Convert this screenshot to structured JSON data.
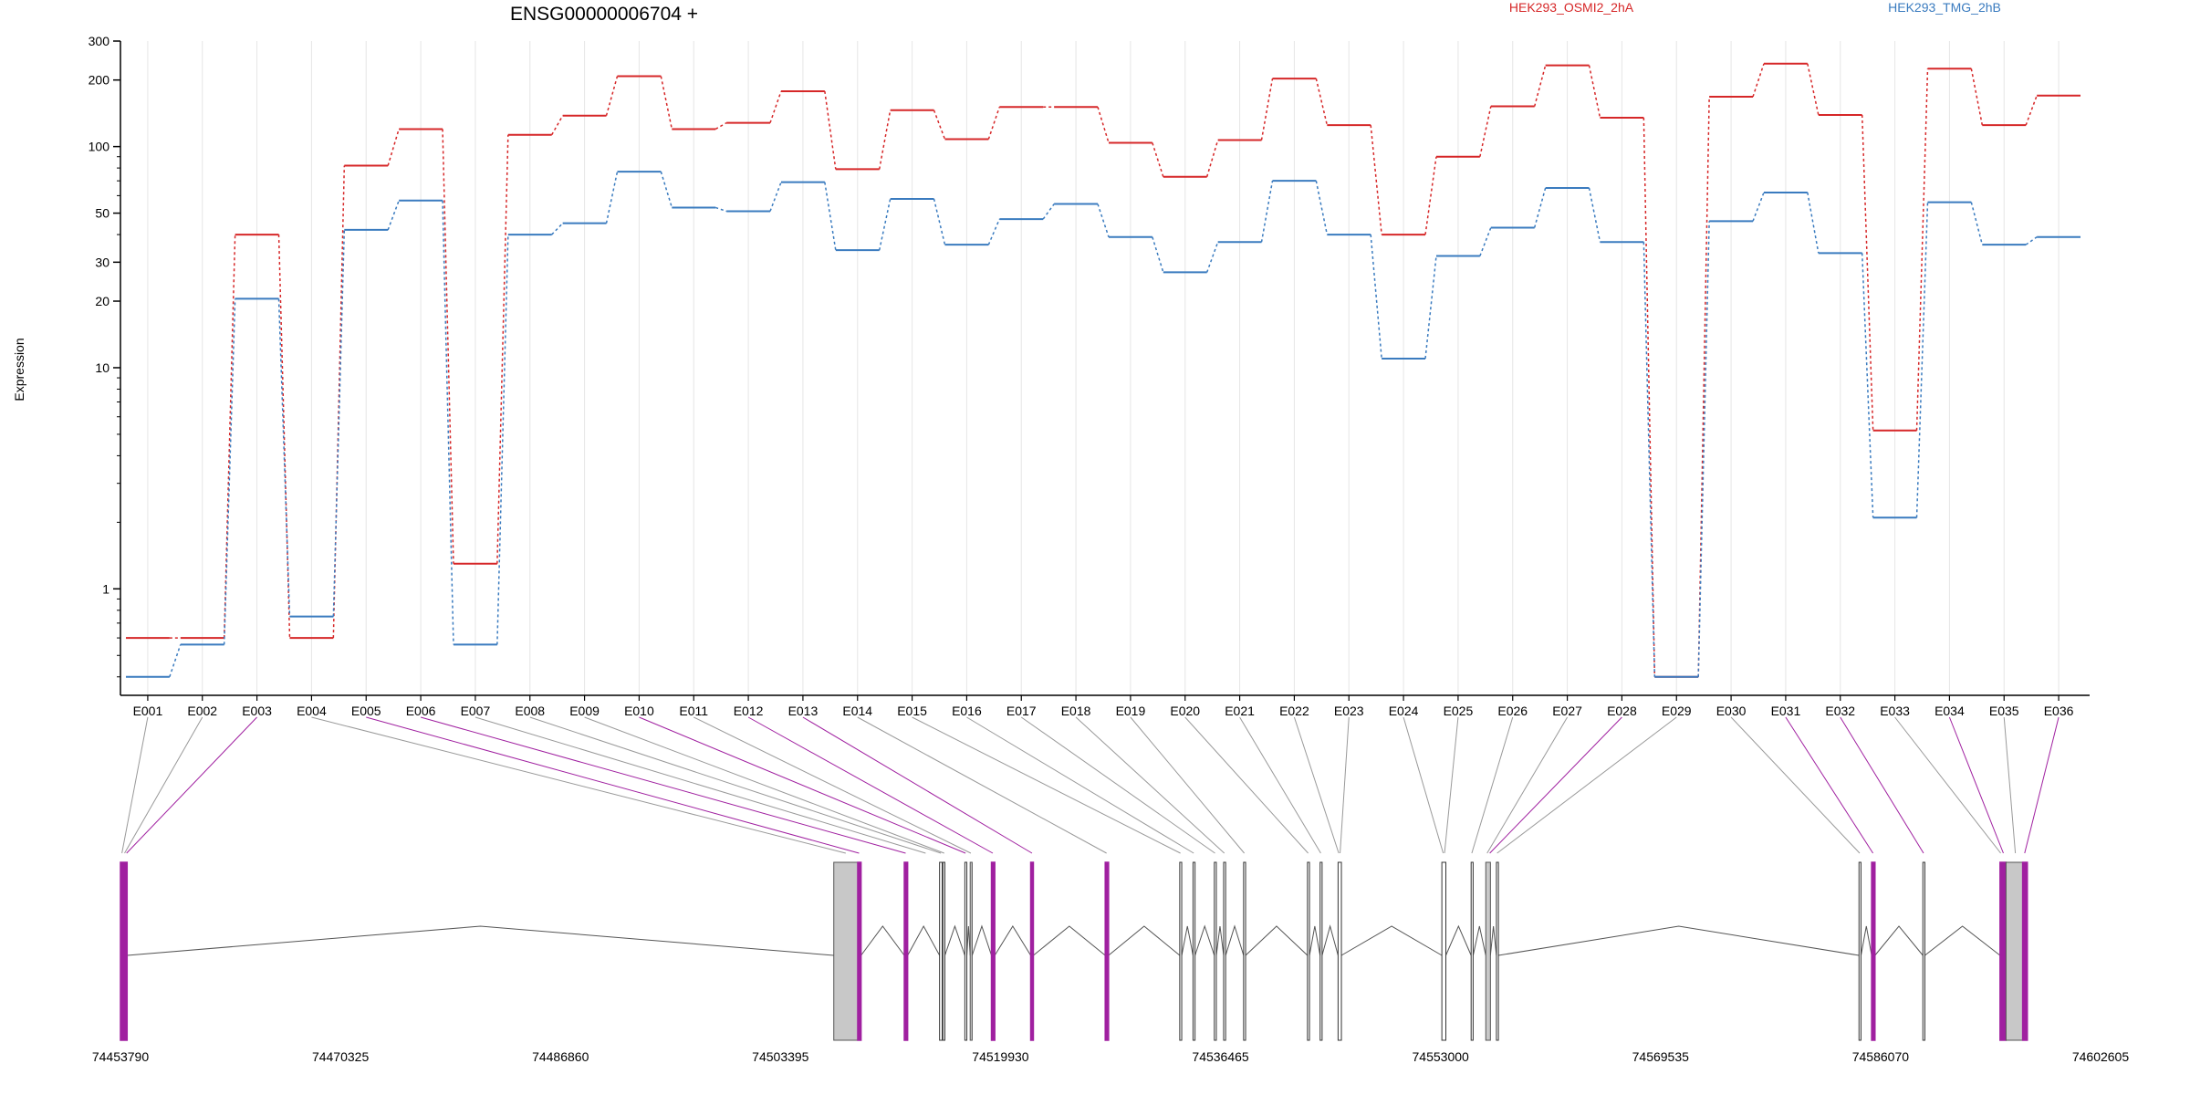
{
  "chart_data": {
    "type": "line",
    "title": "ENSG00000006704 +",
    "ylabel": "Expression",
    "y_scale": "log",
    "ylim": [
      0.33,
      300
    ],
    "y_ticks": [
      {
        "value": 300,
        "label": "300"
      },
      {
        "value": 200,
        "label": "200"
      },
      {
        "value": 100,
        "label": "100"
      },
      {
        "value": 50,
        "label": "50"
      },
      {
        "value": 30,
        "label": "30"
      },
      {
        "value": 20,
        "label": "20"
      },
      {
        "value": 10,
        "label": "10"
      },
      {
        "value": 1,
        "label": "1"
      }
    ],
    "y_minor_ticks": [
      0.4,
      0.5,
      0.6,
      0.7,
      0.8,
      0.9,
      2,
      3,
      4,
      5,
      6,
      7,
      8,
      9,
      40,
      60,
      70,
      80,
      90
    ],
    "grid": "vertical",
    "categories": [
      "E001",
      "E002",
      "E003",
      "E004",
      "E005",
      "E006",
      "E007",
      "E008",
      "E009",
      "E010",
      "E011",
      "E012",
      "E013",
      "E014",
      "E015",
      "E016",
      "E017",
      "E018",
      "E019",
      "E020",
      "E021",
      "E022",
      "E023",
      "E024",
      "E025",
      "E026",
      "E027",
      "E028",
      "E029",
      "E030",
      "E031",
      "E032",
      "E033",
      "E034",
      "E035",
      "E036"
    ],
    "series": [
      {
        "name": "HEK293_OSMI2_2hA",
        "color": "#d62728",
        "values": [
          0.6,
          0.6,
          40,
          0.6,
          82,
          120,
          1.3,
          113,
          138,
          208,
          120,
          128,
          178,
          79,
          146,
          108,
          151,
          151,
          104,
          73,
          107,
          203,
          125,
          40,
          90,
          152,
          233,
          135,
          0.4,
          168,
          237,
          139,
          5.2,
          225,
          125,
          170
        ]
      },
      {
        "name": "HEK293_TMG_2hB",
        "color": "#3a7bbf",
        "values": [
          0.4,
          0.56,
          20.5,
          0.75,
          42,
          57,
          0.56,
          40,
          45,
          77,
          53,
          51,
          69,
          34,
          58,
          36,
          47,
          55,
          39,
          27,
          37,
          70,
          40,
          11,
          32,
          43,
          65,
          37,
          0.4,
          46,
          62,
          33,
          2.1,
          56,
          36,
          39
        ]
      }
    ],
    "genome": {
      "ticks": [
        "74453790",
        "74470325",
        "74486860",
        "74503395",
        "74519930",
        "74536465",
        "74553000",
        "74569535",
        "74586070",
        "74602605"
      ],
      "range": [
        74453790,
        74602605
      ],
      "intron_color": "#555555",
      "gray_exon_color": "#c8c8c8",
      "highlight_color": "#a020a0",
      "exons": [
        {
          "start": 74453790,
          "end": 74454290,
          "style": "purple"
        },
        {
          "start": 74507400,
          "end": 74509200,
          "style": "gray"
        },
        {
          "start": 74509200,
          "end": 74509450,
          "style": "purple"
        },
        {
          "start": 74512700,
          "end": 74512950,
          "style": "purple"
        },
        {
          "start": 74515350,
          "end": 74515550,
          "style": "line"
        },
        {
          "start": 74515600,
          "end": 74515750,
          "style": "line"
        },
        {
          "start": 74517250,
          "end": 74517400,
          "style": "line"
        },
        {
          "start": 74517650,
          "end": 74517800,
          "style": "gray"
        },
        {
          "start": 74519250,
          "end": 74519500,
          "style": "purple"
        },
        {
          "start": 74522200,
          "end": 74522400,
          "style": "purple"
        },
        {
          "start": 74527800,
          "end": 74528050,
          "style": "purple"
        },
        {
          "start": 74533400,
          "end": 74533550,
          "style": "line"
        },
        {
          "start": 74534400,
          "end": 74534550,
          "style": "line"
        },
        {
          "start": 74536000,
          "end": 74536150,
          "style": "line"
        },
        {
          "start": 74536700,
          "end": 74536850,
          "style": "line"
        },
        {
          "start": 74538200,
          "end": 74538350,
          "style": "line"
        },
        {
          "start": 74543000,
          "end": 74543150,
          "style": "line"
        },
        {
          "start": 74543950,
          "end": 74544100,
          "style": "line"
        },
        {
          "start": 74545300,
          "end": 74545550,
          "style": "line"
        },
        {
          "start": 74553100,
          "end": 74553400,
          "style": "line"
        },
        {
          "start": 74555300,
          "end": 74555450,
          "style": "line"
        },
        {
          "start": 74556400,
          "end": 74556750,
          "style": "gray"
        },
        {
          "start": 74557200,
          "end": 74557350,
          "style": "line"
        },
        {
          "start": 74584450,
          "end": 74584600,
          "style": "line"
        },
        {
          "start": 74585400,
          "end": 74585650,
          "style": "purple"
        },
        {
          "start": 74589250,
          "end": 74589400,
          "style": "line"
        },
        {
          "start": 74595050,
          "end": 74595500,
          "style": "purple"
        },
        {
          "start": 74595500,
          "end": 74596750,
          "style": "gray"
        },
        {
          "start": 74596750,
          "end": 74597100,
          "style": "purple"
        }
      ],
      "links": [
        {
          "exon": "E001",
          "pos": 74453900,
          "style": "gray"
        },
        {
          "exon": "E002",
          "pos": 74454100,
          "style": "gray"
        },
        {
          "exon": "E003",
          "pos": 74454250,
          "style": "purple"
        },
        {
          "exon": "E004",
          "pos": 74508300,
          "style": "gray"
        },
        {
          "exon": "E005",
          "pos": 74509300,
          "style": "purple"
        },
        {
          "exon": "E006",
          "pos": 74512800,
          "style": "purple"
        },
        {
          "exon": "E007",
          "pos": 74514300,
          "style": "gray"
        },
        {
          "exon": "E008",
          "pos": 74515450,
          "style": "gray"
        },
        {
          "exon": "E009",
          "pos": 74515700,
          "style": "gray"
        },
        {
          "exon": "E010",
          "pos": 74517300,
          "style": "purple"
        },
        {
          "exon": "E011",
          "pos": 74517700,
          "style": "gray"
        },
        {
          "exon": "E012",
          "pos": 74519350,
          "style": "purple"
        },
        {
          "exon": "E013",
          "pos": 74522300,
          "style": "purple"
        },
        {
          "exon": "E014",
          "pos": 74527900,
          "style": "gray"
        },
        {
          "exon": "E015",
          "pos": 74533450,
          "style": "gray"
        },
        {
          "exon": "E016",
          "pos": 74534450,
          "style": "gray"
        },
        {
          "exon": "E017",
          "pos": 74536050,
          "style": "gray"
        },
        {
          "exon": "E018",
          "pos": 74536750,
          "style": "gray"
        },
        {
          "exon": "E019",
          "pos": 74538250,
          "style": "gray"
        },
        {
          "exon": "E020",
          "pos": 74543050,
          "style": "gray"
        },
        {
          "exon": "E021",
          "pos": 74544000,
          "style": "gray"
        },
        {
          "exon": "E022",
          "pos": 74545350,
          "style": "gray"
        },
        {
          "exon": "E023",
          "pos": 74545450,
          "style": "gray"
        },
        {
          "exon": "E024",
          "pos": 74553200,
          "style": "gray"
        },
        {
          "exon": "E025",
          "pos": 74553300,
          "style": "gray"
        },
        {
          "exon": "E026",
          "pos": 74555350,
          "style": "gray"
        },
        {
          "exon": "E027",
          "pos": 74556500,
          "style": "gray"
        },
        {
          "exon": "E028",
          "pos": 74556700,
          "style": "purple"
        },
        {
          "exon": "E029",
          "pos": 74557250,
          "style": "gray"
        },
        {
          "exon": "E030",
          "pos": 74584500,
          "style": "gray"
        },
        {
          "exon": "E031",
          "pos": 74585500,
          "style": "purple"
        },
        {
          "exon": "E032",
          "pos": 74589300,
          "style": "purple"
        },
        {
          "exon": "E033",
          "pos": 74595100,
          "style": "gray"
        },
        {
          "exon": "E034",
          "pos": 74595300,
          "style": "purple"
        },
        {
          "exon": "E035",
          "pos": 74596200,
          "style": "gray"
        },
        {
          "exon": "E036",
          "pos": 74596900,
          "style": "purple"
        }
      ]
    }
  }
}
